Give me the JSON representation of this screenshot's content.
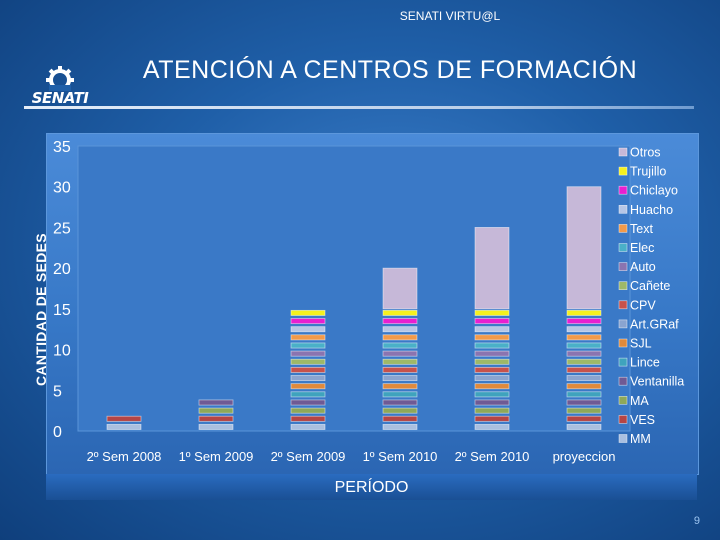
{
  "header": {
    "text": "SENATI VIRTU@L"
  },
  "title": "ATENCIÓN A CENTROS DE FORMACIÓN",
  "logo": {
    "text": "SENATI"
  },
  "page_number": "9",
  "colors": {
    "background": "#1f5fa8",
    "plot_area": "#3a79c7"
  },
  "chart_data": {
    "type": "bar",
    "stacked": true,
    "title": "",
    "xlabel": "PERÍODO",
    "ylabel": "CANTIDAD DE SEDES",
    "ylim": [
      0,
      35
    ],
    "yticks": [
      0,
      5,
      10,
      15,
      20,
      25,
      30,
      35
    ],
    "categories": [
      "2º Sem 2008",
      "1º Sem 2009",
      "2º Sem 2009",
      "1º Sem 2010",
      "2º Sem 2010",
      "proyeccion"
    ],
    "legend_position": "right",
    "series": [
      {
        "name": "MM",
        "color": "#a9bfe0",
        "values": [
          1,
          1,
          1,
          1,
          1,
          1
        ]
      },
      {
        "name": "VES",
        "color": "#b54545",
        "values": [
          1,
          1,
          1,
          1,
          1,
          1
        ]
      },
      {
        "name": "MA",
        "color": "#8ea859",
        "values": [
          0,
          1,
          1,
          1,
          1,
          1
        ]
      },
      {
        "name": "Ventanilla",
        "color": "#6f5a94",
        "values": [
          0,
          1,
          1,
          1,
          1,
          1
        ]
      },
      {
        "name": "Lince",
        "color": "#3fa3bd",
        "values": [
          0,
          0,
          1,
          1,
          1,
          1
        ]
      },
      {
        "name": "SJL",
        "color": "#e08a3c",
        "values": [
          0,
          0,
          1,
          1,
          1,
          1
        ]
      },
      {
        "name": "Art.GRaf",
        "color": "#8aa4d0",
        "values": [
          0,
          0,
          1,
          1,
          1,
          1
        ]
      },
      {
        "name": "CPV",
        "color": "#c7524c",
        "values": [
          0,
          0,
          1,
          1,
          1,
          1
        ]
      },
      {
        "name": "Cañete",
        "color": "#9eb868",
        "values": [
          0,
          0,
          1,
          1,
          1,
          1
        ]
      },
      {
        "name": "Auto",
        "color": "#8a74b0",
        "values": [
          0,
          0,
          1,
          1,
          1,
          1
        ]
      },
      {
        "name": "Elec",
        "color": "#4ab0c8",
        "values": [
          0,
          0,
          1,
          1,
          1,
          1
        ]
      },
      {
        "name": "Text",
        "color": "#f29a4a",
        "values": [
          0,
          0,
          1,
          1,
          1,
          1
        ]
      },
      {
        "name": "Huacho",
        "color": "#b6c6e6",
        "values": [
          0,
          0,
          1,
          1,
          1,
          1
        ]
      },
      {
        "name": "Chiclayo",
        "color": "#e81fd0",
        "values": [
          0,
          0,
          1,
          1,
          1,
          1
        ]
      },
      {
        "name": "Trujillo",
        "color": "#f5f01e",
        "values": [
          0,
          0,
          1,
          1,
          1,
          1
        ]
      },
      {
        "name": "Otros",
        "color": "#c6b8d8",
        "values": [
          0,
          0,
          0,
          5,
          10,
          15
        ]
      }
    ]
  }
}
